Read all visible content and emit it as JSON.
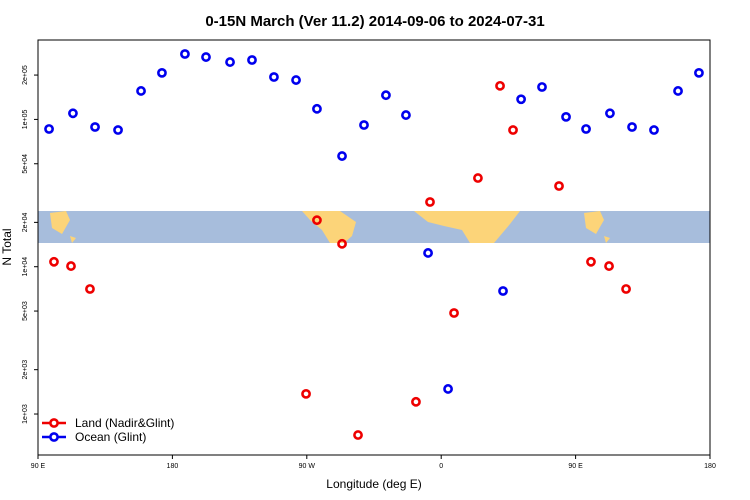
{
  "chart_data": {
    "type": "scatter",
    "title": "0-15N March (Ver 11.2)   2014-09-06 to 2024-07-31",
    "x_label": "Longitude (deg E)",
    "y_label": "N Total",
    "log_y": true,
    "legend": "bottom-left",
    "xlim": [
      90,
      540
    ],
    "xticks": [
      {
        "value": 90,
        "label": "90 E"
      },
      {
        "value": 180,
        "label": "180"
      },
      {
        "value": 270,
        "label": "90 W"
      },
      {
        "value": 360,
        "label": "0"
      },
      {
        "value": 450,
        "label": "90 E"
      },
      {
        "value": 540,
        "label": "180"
      }
    ],
    "ylim": [
      527,
      346000
    ],
    "yticks": [
      {
        "value": 1000,
        "label": "1e+03"
      },
      {
        "value": 2000,
        "label": "2e+03"
      },
      {
        "value": 5000,
        "label": "5e+03"
      },
      {
        "value": 10000,
        "label": "1e+04"
      },
      {
        "value": 20000,
        "label": "2e+04"
      },
      {
        "value": 50000,
        "label": "5e+04"
      },
      {
        "value": 100000,
        "label": "1e+05"
      },
      {
        "value": 200000,
        "label": "2e+05"
      }
    ],
    "series": [
      {
        "name": "Land (Nadir&Glint)",
        "color": "#ee0000",
        "x": [
          100.7,
          112.1,
          124.8,
          269.5,
          276.8,
          293.6,
          304.3,
          343.1,
          352.5,
          368.6,
          384.6,
          399.4,
          408.1,
          438.9,
          460.3,
          472.4,
          483.8
        ],
        "values": [
          10800,
          10100,
          7060,
          1370,
          20700,
          14300,
          720,
          1210,
          27500,
          4850,
          40000,
          169000,
          84700,
          35300,
          10800,
          10100,
          7060
        ]
      },
      {
        "name": "Ocean (Glint)",
        "color": "#0000ee",
        "x": [
          97.4,
          113.4,
          128.2,
          143.6,
          159,
          173,
          188.4,
          202.5,
          218.6,
          233.3,
          248,
          262.8,
          276.8,
          293.6,
          308.3,
          323,
          336.4,
          351.2,
          364.6,
          401.4,
          413.5,
          427.5,
          443.6,
          457,
          473,
          487.8,
          502.5,
          518.6,
          532.6
        ],
        "values": [
          86100,
          110000,
          88800,
          84700,
          156000,
          207000,
          278000,
          265000,
          245000,
          253000,
          194000,
          185000,
          118000,
          56400,
          91600,
          146000,
          107000,
          12400,
          1480,
          6840,
          137000,
          166000,
          104000,
          86100,
          110000,
          88800,
          84700,
          156000,
          207000
        ]
      }
    ]
  }
}
